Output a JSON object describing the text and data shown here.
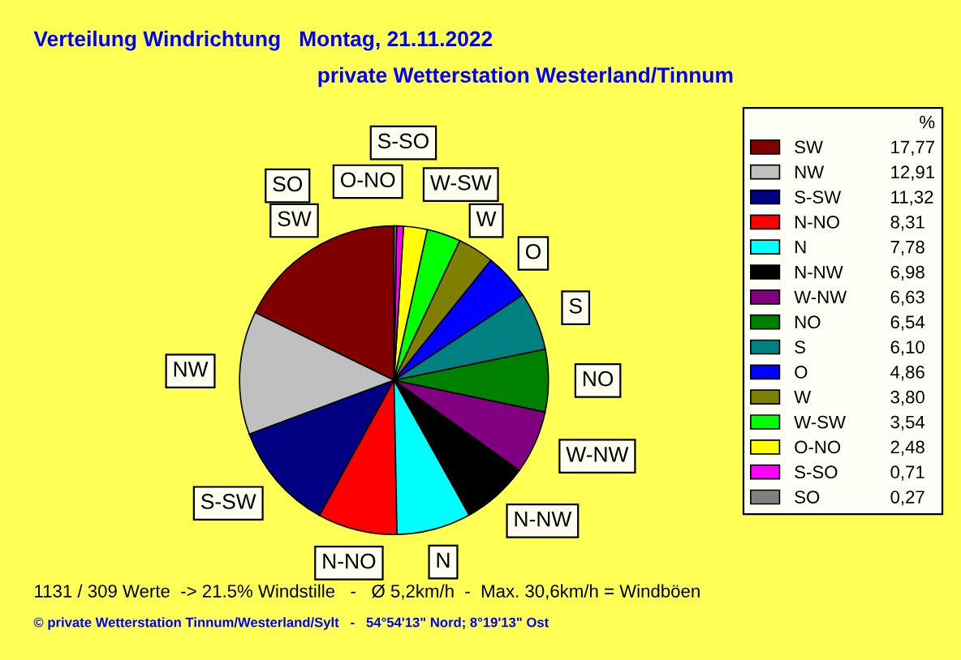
{
  "chart_data": {
    "type": "pie",
    "title": "Verteilung Windrichtung   Montag, 21.11.2022",
    "subtitle": "private Wetterstation Westerland/Tinnum",
    "legend_title": "%",
    "legend": "right",
    "categories": [
      "SW",
      "NW",
      "S-SW",
      "N-NO",
      "N",
      "N-NW",
      "W-NW",
      "NO",
      "S",
      "O",
      "W",
      "W-SW",
      "O-NO",
      "S-SO",
      "SO"
    ],
    "values": [
      17.77,
      12.91,
      11.32,
      8.31,
      7.78,
      6.98,
      6.63,
      6.54,
      6.1,
      4.86,
      3.8,
      3.54,
      2.48,
      0.71,
      0.27
    ],
    "value_labels": [
      "17,77",
      "12,91",
      "11,32",
      "8,31",
      "7,78",
      "6,98",
      "6,63",
      "6,54",
      "6,10",
      "4,86",
      "3,80",
      "3,54",
      "2,48",
      "0,71",
      "0,27"
    ],
    "colors": [
      "#800000",
      "#c0c0c0",
      "#000080",
      "#ff0000",
      "#00ffff",
      "#000000",
      "#800080",
      "#008000",
      "#008080",
      "#0000ff",
      "#808000",
      "#00ff00",
      "#ffff00",
      "#ff00ff",
      "#808080"
    ],
    "annotations": [
      "1131 / 309 Werte  -> 21.5% Windstille   -   Ø 5,2km/h  -  Max. 30,6km/h = Windböen",
      "© private Wetterstation Tinnum/Westerland/Sylt   -   54°54'13\" Nord; 8°19'13\" Ost"
    ]
  }
}
